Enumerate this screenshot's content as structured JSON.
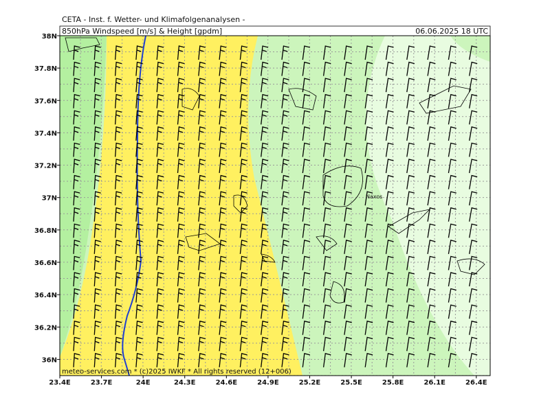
{
  "header": {
    "title": "CETA - Inst. f. Wetter- und Klimafolgenanalysen -",
    "subtitle": "850hPa Windspeed [m/s] & Height [gpdm]",
    "timestamp": "06.06.2025 18 UTC"
  },
  "map": {
    "xlim": [
      23.4,
      26.5
    ],
    "ylim": [
      35.9,
      38
    ],
    "xticks": [
      {
        "value": 23.4,
        "label": "23.4E"
      },
      {
        "value": 23.7,
        "label": "23.7E"
      },
      {
        "value": 24,
        "label": "24E"
      },
      {
        "value": 24.3,
        "label": "24.3E"
      },
      {
        "value": 24.6,
        "label": "24.6E"
      },
      {
        "value": 24.9,
        "label": "24.9E"
      },
      {
        "value": 25.2,
        "label": "25.2E"
      },
      {
        "value": 25.5,
        "label": "25.5E"
      },
      {
        "value": 25.8,
        "label": "25.8E"
      },
      {
        "value": 26.1,
        "label": "26.1E"
      },
      {
        "value": 26.4,
        "label": "26.4E"
      }
    ],
    "yticks": [
      {
        "value": 36,
        "label": "36N"
      },
      {
        "value": 36.2,
        "label": "36.2N"
      },
      {
        "value": 36.4,
        "label": "36.4N"
      },
      {
        "value": 36.6,
        "label": "36.6N"
      },
      {
        "value": 36.8,
        "label": "36.8N"
      },
      {
        "value": 37,
        "label": "37N"
      },
      {
        "value": 37.2,
        "label": "37.2N"
      },
      {
        "value": 37.4,
        "label": "37.4N"
      },
      {
        "value": 37.6,
        "label": "37.6N"
      },
      {
        "value": 37.8,
        "label": "37.8N"
      },
      {
        "value": 38,
        "label": "38N"
      }
    ],
    "places": [
      "Naxos"
    ]
  },
  "footer": "meteo-services.com * (c)2025 IWKF * All rights reserved (12+006)"
}
